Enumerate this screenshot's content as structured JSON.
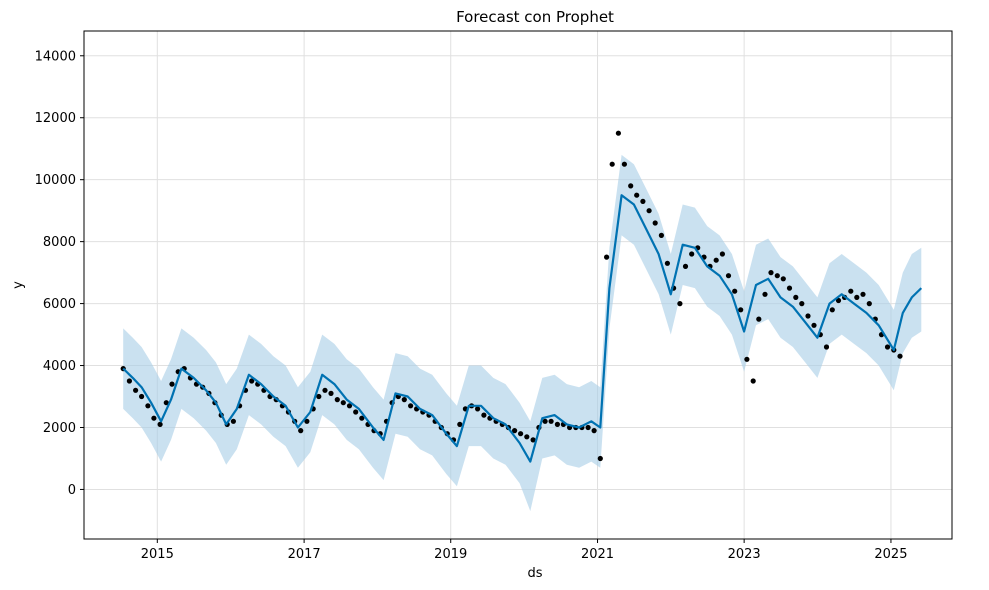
{
  "chart_data": {
    "type": "scatter",
    "title": "Forecast con Prophet",
    "xlabel": "ds",
    "ylabel": "y",
    "xlim": [
      "2014-01-01",
      "2025-11-01"
    ],
    "ylim": [
      -1600,
      14800
    ],
    "x_ticks": [
      "2015",
      "2017",
      "2019",
      "2021",
      "2023",
      "2025"
    ],
    "y_ticks": [
      0,
      2000,
      4000,
      6000,
      8000,
      10000,
      12000,
      14000
    ],
    "grid": true,
    "colors": {
      "observed": "#000000",
      "forecast": "#0072B2",
      "interval": "#a6cde6",
      "grid": "#e0e0e0"
    },
    "series": [
      {
        "kind": "forecast",
        "x": [
          "2014-07-15",
          "2014-09-01",
          "2014-10-15",
          "2014-12-01",
          "2015-01-20",
          "2015-03-10",
          "2015-05-01",
          "2015-07-01",
          "2015-09-01",
          "2015-10-20",
          "2015-12-10",
          "2016-02-01",
          "2016-04-01",
          "2016-06-01",
          "2016-08-01",
          "2016-10-01",
          "2016-12-01",
          "2017-02-01",
          "2017-04-01",
          "2017-06-01",
          "2017-08-01",
          "2017-10-01",
          "2017-12-10",
          "2018-02-01",
          "2018-04-01",
          "2018-06-01",
          "2018-08-01",
          "2018-10-01",
          "2018-12-10",
          "2019-02-01",
          "2019-04-01",
          "2019-06-01",
          "2019-08-01",
          "2019-10-01",
          "2019-12-10",
          "2020-02-01",
          "2020-04-01",
          "2020-06-01",
          "2020-08-01",
          "2020-10-01",
          "2020-12-01",
          "2021-01-15",
          "2021-03-01",
          "2021-05-01",
          "2021-07-01",
          "2021-09-01",
          "2021-11-01",
          "2022-01-01",
          "2022-03-01",
          "2022-05-01",
          "2022-07-01",
          "2022-09-01",
          "2022-11-01",
          "2023-01-01",
          "2023-03-01",
          "2023-05-01",
          "2023-07-01",
          "2023-09-01",
          "2023-11-01",
          "2024-01-01",
          "2024-03-01",
          "2024-05-01",
          "2024-07-01",
          "2024-09-01",
          "2024-11-01",
          "2025-01-15",
          "2025-03-01",
          "2025-04-15",
          "2025-06-01"
        ],
        "y": [
          3900,
          3600,
          3300,
          2800,
          2200,
          2900,
          3900,
          3600,
          3200,
          2800,
          2100,
          2600,
          3700,
          3400,
          3000,
          2700,
          2000,
          2500,
          3700,
          3400,
          2900,
          2600,
          2000,
          1600,
          3100,
          3000,
          2600,
          2400,
          1800,
          1400,
          2700,
          2700,
          2300,
          2100,
          1500,
          900,
          2300,
          2400,
          2100,
          2000,
          2200,
          2000,
          6500,
          9500,
          9200,
          8400,
          7600,
          6300,
          7900,
          7800,
          7200,
          6900,
          6300,
          5100,
          6600,
          6800,
          6200,
          5900,
          5400,
          4900,
          6000,
          6300,
          6000,
          5700,
          5300,
          4500,
          5700,
          6200,
          6500
        ]
      },
      {
        "kind": "interval",
        "x": [
          "2014-07-15",
          "2014-09-01",
          "2014-10-15",
          "2014-12-01",
          "2015-01-20",
          "2015-03-10",
          "2015-05-01",
          "2015-07-01",
          "2015-09-01",
          "2015-10-20",
          "2015-12-10",
          "2016-02-01",
          "2016-04-01",
          "2016-06-01",
          "2016-08-01",
          "2016-10-01",
          "2016-12-01",
          "2017-02-01",
          "2017-04-01",
          "2017-06-01",
          "2017-08-01",
          "2017-10-01",
          "2017-12-10",
          "2018-02-01",
          "2018-04-01",
          "2018-06-01",
          "2018-08-01",
          "2018-10-01",
          "2018-12-10",
          "2019-02-01",
          "2019-04-01",
          "2019-06-01",
          "2019-08-01",
          "2019-10-01",
          "2019-12-10",
          "2020-02-01",
          "2020-04-01",
          "2020-06-01",
          "2020-08-01",
          "2020-10-01",
          "2020-12-01",
          "2021-01-15",
          "2021-03-01",
          "2021-05-01",
          "2021-07-01",
          "2021-09-01",
          "2021-11-01",
          "2022-01-01",
          "2022-03-01",
          "2022-05-01",
          "2022-07-01",
          "2022-09-01",
          "2022-11-01",
          "2023-01-01",
          "2023-03-01",
          "2023-05-01",
          "2023-07-01",
          "2023-09-01",
          "2023-11-01",
          "2024-01-01",
          "2024-03-01",
          "2024-05-01",
          "2024-07-01",
          "2024-09-01",
          "2024-11-01",
          "2025-01-15",
          "2025-03-01",
          "2025-04-15",
          "2025-06-01"
        ],
        "lower": [
          2600,
          2300,
          2000,
          1500,
          900,
          1600,
          2600,
          2300,
          1900,
          1500,
          800,
          1300,
          2400,
          2100,
          1700,
          1400,
          700,
          1200,
          2400,
          2100,
          1600,
          1300,
          700,
          300,
          1800,
          1700,
          1300,
          1100,
          500,
          100,
          1400,
          1400,
          1000,
          800,
          200,
          -700,
          1000,
          1100,
          800,
          700,
          900,
          700,
          5200,
          8200,
          7900,
          7100,
          6300,
          5000,
          6600,
          6500,
          5900,
          5600,
          5000,
          3800,
          5300,
          5500,
          4900,
          4600,
          4100,
          3600,
          4700,
          5000,
          4700,
          4400,
          4000,
          3200,
          4400,
          4900,
          5100
        ],
        "upper": [
          5200,
          4900,
          4600,
          4100,
          3500,
          4200,
          5200,
          4900,
          4500,
          4100,
          3400,
          3900,
          5000,
          4700,
          4300,
          4000,
          3300,
          3800,
          5000,
          4700,
          4200,
          3900,
          3300,
          2900,
          4400,
          4300,
          3900,
          3700,
          3100,
          2700,
          4000,
          4000,
          3600,
          3400,
          2800,
          2200,
          3600,
          3700,
          3400,
          3300,
          3500,
          3300,
          7800,
          10800,
          10500,
          9700,
          8900,
          7600,
          9200,
          9100,
          8500,
          8200,
          7600,
          6400,
          7900,
          8100,
          7500,
          7200,
          6700,
          6200,
          7300,
          7600,
          7300,
          7000,
          6600,
          5800,
          7000,
          7600,
          7800
        ]
      },
      {
        "kind": "observed",
        "x": [
          "2014-07-15",
          "2014-08-15",
          "2014-09-15",
          "2014-10-15",
          "2014-11-15",
          "2014-12-15",
          "2015-01-15",
          "2015-02-15",
          "2015-03-15",
          "2015-04-15",
          "2015-05-15",
          "2015-06-15",
          "2015-07-15",
          "2015-08-15",
          "2015-09-15",
          "2015-10-15",
          "2015-11-15",
          "2015-12-15",
          "2016-01-15",
          "2016-02-15",
          "2016-03-15",
          "2016-04-15",
          "2016-05-15",
          "2016-06-15",
          "2016-07-15",
          "2016-08-15",
          "2016-09-15",
          "2016-10-15",
          "2016-11-15",
          "2016-12-15",
          "2017-01-15",
          "2017-02-15",
          "2017-03-15",
          "2017-04-15",
          "2017-05-15",
          "2017-06-15",
          "2017-07-15",
          "2017-08-15",
          "2017-09-15",
          "2017-10-15",
          "2017-11-15",
          "2017-12-15",
          "2018-01-15",
          "2018-02-15",
          "2018-03-15",
          "2018-04-15",
          "2018-05-15",
          "2018-06-15",
          "2018-07-15",
          "2018-08-15",
          "2018-09-15",
          "2018-10-15",
          "2018-11-15",
          "2018-12-15",
          "2019-01-15",
          "2019-02-15",
          "2019-03-15",
          "2019-04-15",
          "2019-05-15",
          "2019-06-15",
          "2019-07-15",
          "2019-08-15",
          "2019-09-15",
          "2019-10-15",
          "2019-11-15",
          "2019-12-15",
          "2020-01-15",
          "2020-02-15",
          "2020-03-15",
          "2020-04-15",
          "2020-05-15",
          "2020-06-15",
          "2020-07-15",
          "2020-08-15",
          "2020-09-15",
          "2020-10-15",
          "2020-11-15",
          "2020-12-15",
          "2021-01-15",
          "2021-02-15",
          "2021-03-15",
          "2021-04-15",
          "2021-05-15",
          "2021-06-15",
          "2021-07-15",
          "2021-08-15",
          "2021-09-15",
          "2021-10-15",
          "2021-11-15",
          "2021-12-15",
          "2022-01-15",
          "2022-02-15",
          "2022-03-15",
          "2022-04-15",
          "2022-05-15",
          "2022-06-15",
          "2022-07-15",
          "2022-08-15",
          "2022-09-15",
          "2022-10-15",
          "2022-11-15",
          "2022-12-15",
          "2023-01-15",
          "2023-02-15",
          "2023-03-15",
          "2023-04-15",
          "2023-05-15",
          "2023-06-15",
          "2023-07-15",
          "2023-08-15",
          "2023-09-15",
          "2023-10-15",
          "2023-11-15",
          "2023-12-15",
          "2024-01-15",
          "2024-02-15",
          "2024-03-15",
          "2024-04-15",
          "2024-05-15",
          "2024-06-15",
          "2024-07-15",
          "2024-08-15",
          "2024-09-15",
          "2024-10-15",
          "2024-11-15",
          "2024-12-15",
          "2025-01-15",
          "2025-02-15"
        ],
        "y": [
          3900,
          3500,
          3200,
          3000,
          2700,
          2300,
          2100,
          2800,
          3400,
          3800,
          3900,
          3600,
          3400,
          3300,
          3100,
          2800,
          2400,
          2100,
          2200,
          2700,
          3200,
          3500,
          3400,
          3200,
          3000,
          2900,
          2700,
          2500,
          2200,
          1900,
          2200,
          2600,
          3000,
          3200,
          3100,
          2900,
          2800,
          2700,
          2500,
          2300,
          2100,
          1900,
          1800,
          2200,
          2800,
          3000,
          2900,
          2700,
          2600,
          2500,
          2400,
          2200,
          2000,
          1800,
          1600,
          2100,
          2600,
          2700,
          2600,
          2400,
          2300,
          2200,
          2100,
          2000,
          1900,
          1800,
          1700,
          1600,
          2000,
          2200,
          2200,
          2100,
          2100,
          2000,
          2000,
          2000,
          2000,
          1900,
          1000,
          7500,
          10500,
          11500,
          10500,
          9800,
          9500,
          9300,
          9000,
          8600,
          8200,
          7300,
          6500,
          6000,
          7200,
          7600,
          7800,
          7500,
          7200,
          7400,
          7600,
          6900,
          6400,
          5800,
          4200,
          3500,
          5500,
          6300,
          7000,
          6900,
          6800,
          6500,
          6200,
          6000,
          5600,
          5300,
          5000,
          4600,
          5800,
          6100,
          6200,
          6400,
          6200,
          6300,
          6000,
          5500,
          5000,
          4600,
          4500,
          4300
        ]
      }
    ]
  }
}
